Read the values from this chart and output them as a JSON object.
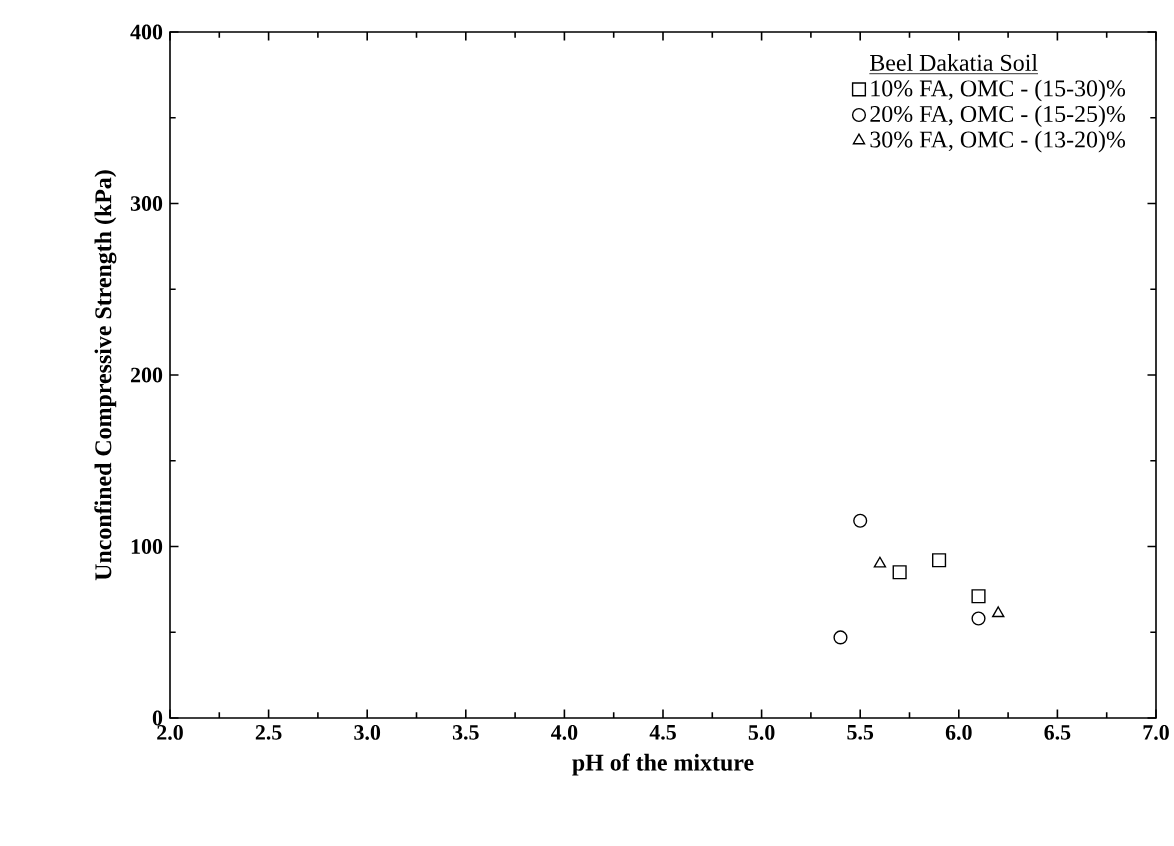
{
  "chart_data": {
    "type": "scatter",
    "xlabel": "pH of the mixture",
    "ylabel": "Unconfined Compressive Strength (kPa)",
    "legend_title": "Beel Dakatia Soil",
    "legend": "top right",
    "grid": false,
    "xlim": [
      2.0,
      7.0
    ],
    "xticks": [
      {
        "value": 2,
        "label": "2.0"
      },
      {
        "value": 2.5,
        "label": "2.5"
      },
      {
        "value": 3,
        "label": "3.0"
      },
      {
        "value": 3.5,
        "label": "3.5"
      },
      {
        "value": 4,
        "label": "4.0"
      },
      {
        "value": 4.5,
        "label": "4.5"
      },
      {
        "value": 5,
        "label": "5.0"
      },
      {
        "value": 5.5,
        "label": "5.5"
      },
      {
        "value": 6,
        "label": "6.0"
      },
      {
        "value": 6.5,
        "label": "6.5"
      },
      {
        "value": 7,
        "label": "7.0"
      }
    ],
    "ylim": [
      0,
      400
    ],
    "yticks": [
      0,
      100,
      200,
      300,
      400
    ],
    "series": [
      {
        "name": "10% FA, OMC - (15-30)%",
        "color": "#000000",
        "marker": "square",
        "x": [
          5.7,
          5.9,
          6.1
        ],
        "values": [
          85,
          92,
          71
        ]
      },
      {
        "name": "20% FA, OMC - (15-25)%",
        "color": "#000000",
        "marker": "circle",
        "x": [
          5.5,
          5.4,
          6.1
        ],
        "values": [
          115,
          47,
          58
        ]
      },
      {
        "name": "30% FA, OMC - (13-20)%",
        "color": "#000000",
        "marker": "triangle",
        "x": [
          5.6,
          6.2
        ],
        "values": [
          90,
          61
        ]
      }
    ]
  }
}
